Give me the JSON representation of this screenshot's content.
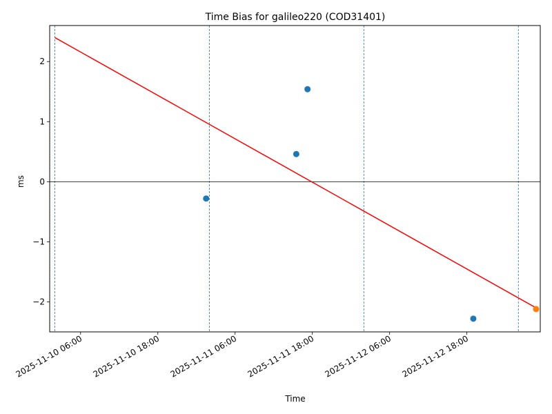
{
  "chart_data": {
    "type": "scatter",
    "title": "Time Bias for galileo220 (COD31401)",
    "xlabel": "Time",
    "ylabel": "ms",
    "x_axis_type": "datetime",
    "xlim": [
      "2025-11-10 01:12",
      "2025-11-13 05:24"
    ],
    "ylim": [
      -2.5,
      2.6
    ],
    "x_ticks": [
      "2025-11-10 06:00",
      "2025-11-10 18:00",
      "2025-11-11 06:00",
      "2025-11-11 18:00",
      "2025-11-12 06:00",
      "2025-11-12 18:00"
    ],
    "y_ticks": [
      -2,
      -1,
      0,
      1,
      2
    ],
    "y_tick_labels": [
      "−2",
      "−1",
      "0",
      "1",
      "2"
    ],
    "grid": false,
    "zero_line": true,
    "vertical_markers": [
      "2025-11-10 02:00",
      "2025-11-11 02:00",
      "2025-11-12 02:00",
      "2025-11-13 02:00"
    ],
    "series": [
      {
        "color": "#1f77b4",
        "points": [
          {
            "x": "2025-11-11 01:30",
            "y": -0.28
          },
          {
            "x": "2025-11-11 15:30",
            "y": 0.46
          },
          {
            "x": "2025-11-11 17:15",
            "y": 1.54
          },
          {
            "x": "2025-11-12 19:00",
            "y": -2.28
          }
        ]
      },
      {
        "color": "#ff7f0e",
        "points": [
          {
            "x": "2025-11-13 04:45",
            "y": -2.12
          }
        ]
      }
    ],
    "trend_line": {
      "color": "#ff0000",
      "points": [
        {
          "x": "2025-11-10 02:00",
          "y": 2.4
        },
        {
          "x": "2025-11-13 04:45",
          "y": -2.1
        }
      ]
    }
  }
}
